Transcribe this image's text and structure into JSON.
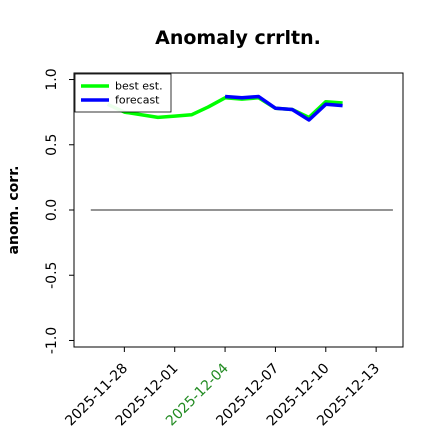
{
  "chart_data": {
    "type": "line",
    "title": "Anomaly crrltn.",
    "xlabel": "",
    "ylabel": "anom. corr.",
    "ylim": [
      -1.05,
      1.05
    ],
    "yticks": [
      -1.0,
      -0.5,
      0.0,
      0.5,
      1.0
    ],
    "ytick_labels": [
      "-1.0",
      "-0.5",
      "0.0",
      "0.5",
      "1.0"
    ],
    "xlim": [
      "2025-11-25",
      "2026-01-03"
    ],
    "xticks": [
      "2025-11-28",
      "2025-12-01",
      "2025-12-04",
      "2025-12-07",
      "2025-12-10",
      "2025-12-13"
    ],
    "xtick_labels": [
      "2025-11-28",
      "2025-12-01",
      "2025-12-04",
      "2025-12-07",
      "2025-12-10",
      "2025-12-13"
    ],
    "highlighted_xtick": "2025-12-04",
    "highlight_color": "#228B22",
    "reference_line": 0.0,
    "reference_line_range": [
      "2025-11-26",
      "2025-12-14"
    ],
    "grid": false,
    "legend_position": "top-left",
    "series": [
      {
        "name": "best est.",
        "color": "#00FF00",
        "x": [
          "2025-11-27",
          "2025-11-28",
          "2025-11-30",
          "2025-12-01",
          "2025-12-02",
          "2025-12-03",
          "2025-12-04",
          "2025-12-05",
          "2025-12-06",
          "2025-12-07",
          "2025-12-08",
          "2025-12-09",
          "2025-12-10",
          "2025-12-11"
        ],
        "values": [
          0.81,
          0.75,
          0.71,
          0.72,
          0.73,
          0.79,
          0.86,
          0.85,
          0.86,
          0.78,
          0.77,
          0.71,
          0.83,
          0.82
        ]
      },
      {
        "name": "forecast",
        "color": "#0000FF",
        "x": [
          "2025-12-04",
          "2025-12-05",
          "2025-12-06",
          "2025-12-07",
          "2025-12-08",
          "2025-12-09",
          "2025-12-10",
          "2025-12-11"
        ],
        "values": [
          0.87,
          0.86,
          0.87,
          0.78,
          0.77,
          0.69,
          0.81,
          0.8
        ]
      }
    ]
  }
}
